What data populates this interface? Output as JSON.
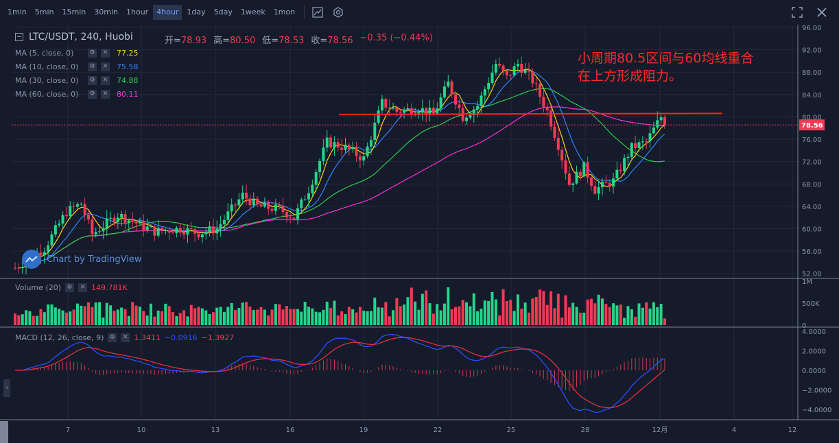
{
  "toolbar": {
    "timeframes": [
      "1min",
      "5min",
      "15min",
      "30min",
      "1hour",
      "4hour",
      "1day",
      "5day",
      "1week",
      "1mon"
    ],
    "active": "4hour",
    "icons": [
      "indicator-icon",
      "settings-icon"
    ],
    "right_icons": [
      "fullscreen-icon",
      "close-icon"
    ]
  },
  "header": {
    "symbol": "LTC/USDT, 240, Huobi",
    "open_label": "开=",
    "open": "78.93",
    "high_label": "高=",
    "high": "80.50",
    "low_label": "低=",
    "low": "78.53",
    "close_label": "收=",
    "close": "78.56",
    "change": "−0.35 (−0.44%)"
  },
  "indicators": [
    {
      "label": "MA (5, close, 0)",
      "value": "77.25",
      "color": "#ffd11a"
    },
    {
      "label": "MA (10, close, 0)",
      "value": "75.58",
      "color": "#2e86ff"
    },
    {
      "label": "MA (30, close, 0)",
      "value": "74.88",
      "color": "#2ecc4a"
    },
    {
      "label": "MA (60, close, 0)",
      "value": "80.11",
      "color": "#ff2fd4"
    }
  ],
  "volume_legend": {
    "label": "Volume (20)",
    "value": "149.781K"
  },
  "macd_legend": {
    "label": "MACD (12, 26, close, 9)",
    "v1": "1.3411",
    "v2": "−0.0916",
    "v3": "−1.3927"
  },
  "annotation": {
    "line1": "小周期80.5区间与60均线重合",
    "line2": "在上方形成阻力。"
  },
  "watermark": "Chart by TradingView",
  "last_price": "78.56",
  "colors": {
    "up": "#26d48a",
    "down": "#f03b54",
    "bg": "#151b2b",
    "grid": "#232a3b"
  },
  "chart_data": {
    "type": "candlestick",
    "price_axis": {
      "min": 50,
      "max": 96,
      "ticks": [
        "96.00",
        "92.00",
        "88.00",
        "84.00",
        "80.00",
        "76.00",
        "72.00",
        "68.00",
        "64.00",
        "60.00",
        "56.00",
        "52.00"
      ]
    },
    "volume_axis": {
      "ticks": [
        "1M",
        "500K",
        "0"
      ]
    },
    "macd_axis": {
      "min": -5,
      "max": 4,
      "ticks": [
        "4.0000",
        "2.0000",
        "0.0000",
        "−2.0000",
        "−4.0000"
      ]
    },
    "date_ticks": [
      "7",
      "10",
      "13",
      "16",
      "19",
      "22",
      "25",
      "28",
      "12月",
      "4",
      "12"
    ],
    "resistance_level": 80.5,
    "waypoints": [
      [
        0,
        53
      ],
      [
        8,
        56.5
      ],
      [
        14,
        63
      ],
      [
        18,
        64.5
      ],
      [
        21,
        59
      ],
      [
        28,
        62.5
      ],
      [
        33,
        61
      ],
      [
        38,
        59.5
      ],
      [
        45,
        60
      ],
      [
        50,
        59.2
      ],
      [
        55,
        60
      ],
      [
        62,
        66
      ],
      [
        66,
        64
      ],
      [
        72,
        63.5
      ],
      [
        76,
        62
      ],
      [
        80,
        67
      ],
      [
        85,
        75.5
      ],
      [
        90,
        74.5
      ],
      [
        95,
        72.5
      ],
      [
        100,
        82.5
      ],
      [
        104,
        81
      ],
      [
        110,
        81.5
      ],
      [
        114,
        80.5
      ],
      [
        118,
        86
      ],
      [
        122,
        80
      ],
      [
        126,
        82
      ],
      [
        131,
        89.5
      ],
      [
        134,
        87
      ],
      [
        137,
        89.5
      ],
      [
        141,
        86.5
      ],
      [
        145,
        81
      ],
      [
        148,
        75
      ],
      [
        151,
        68
      ],
      [
        155,
        71
      ],
      [
        158,
        67
      ],
      [
        163,
        68.5
      ],
      [
        168,
        74.5
      ],
      [
        172,
        75.5
      ],
      [
        176,
        80
      ],
      [
        177,
        78.56
      ]
    ],
    "ma_values": {
      "ma5": 77.25,
      "ma10": 75.58,
      "ma30": 74.88,
      "ma60": 80.11
    }
  }
}
